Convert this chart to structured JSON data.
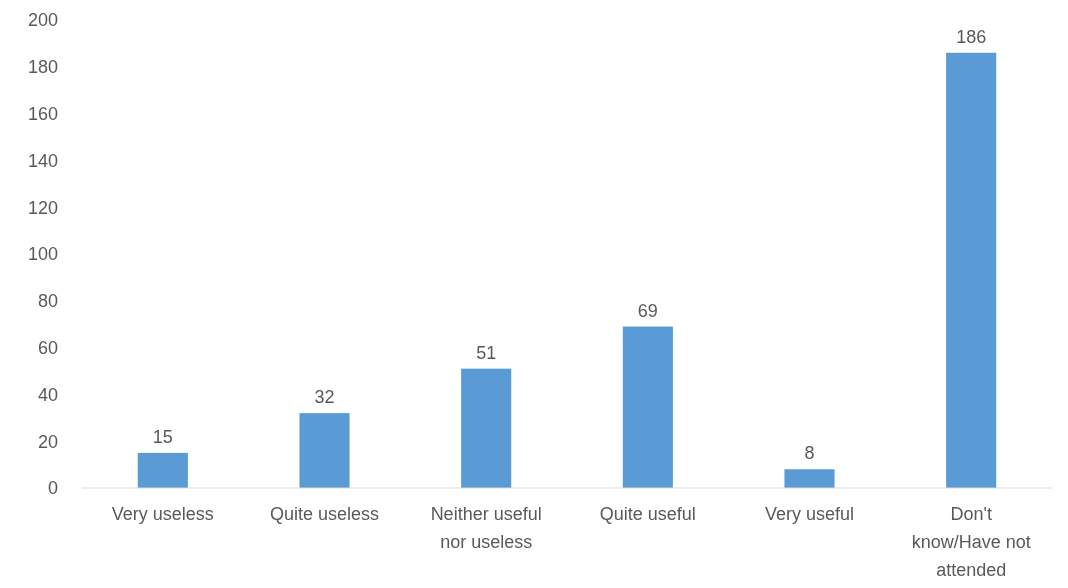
{
  "chart_data": {
    "type": "bar",
    "categories": [
      "Very useless",
      "Quite useless",
      "Neither useful nor useless",
      "Quite useful",
      "Very useful",
      "Don't know/Have not attended"
    ],
    "values": [
      15,
      32,
      51,
      69,
      8,
      186
    ],
    "color": "#5b9bd5",
    "ylim": [
      0,
      200
    ],
    "yticks": [
      0,
      20,
      40,
      60,
      80,
      100,
      120,
      140,
      160,
      180,
      200
    ],
    "data_labels": true
  }
}
